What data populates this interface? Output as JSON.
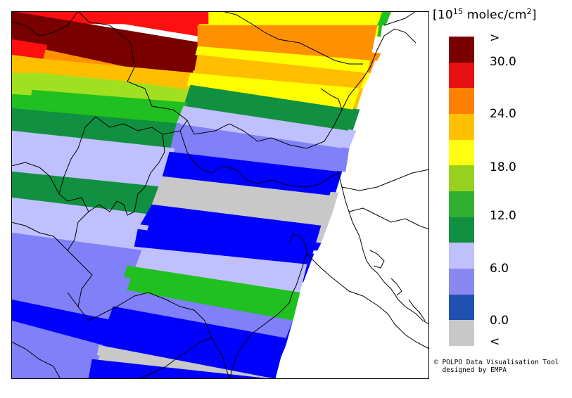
{
  "unit": {
    "prefix": "[10",
    "exponent": "15",
    "middle": " molec/cm",
    "square": "2",
    "suffix": "]"
  },
  "legend": {
    "bins": [
      {
        "label": ">",
        "color": "#7a0000"
      },
      {
        "label": "",
        "color": "#e81010"
      },
      {
        "label": "",
        "color": "#ff8000"
      },
      {
        "label": "",
        "color": "#ffc000"
      },
      {
        "label": "",
        "color": "#ffff10"
      },
      {
        "label": "",
        "color": "#98d020"
      },
      {
        "label": "",
        "color": "#30b030"
      },
      {
        "label": "",
        "color": "#109040"
      },
      {
        "label": "",
        "color": "#c0c0ff"
      },
      {
        "label": "",
        "color": "#8888f0"
      },
      {
        "label": "",
        "color": "#2050b0"
      },
      {
        "label": "<",
        "color": "#c8c8c8"
      }
    ],
    "ticks": [
      ">",
      "30.0",
      "24.0",
      "18.0",
      "12.0",
      "6.0",
      "0.0",
      "<"
    ]
  },
  "credit": {
    "line1": "© POLPO Data Visualisation Tool",
    "line2": "  designed by EMPA"
  },
  "map": {
    "swath_colors": {
      "darkred": "#7a0000",
      "red": "#ff1010",
      "orange": "#ff9000",
      "amber": "#ffbf00",
      "yellow": "#ffff00",
      "lightgreen": "#a0e020",
      "green": "#20c020",
      "darkgreen": "#109040",
      "lavender": "#c0c0ff",
      "periwinkle": "#8080f8",
      "blue": "#0000ff",
      "grey": "#c8c8c8"
    }
  }
}
